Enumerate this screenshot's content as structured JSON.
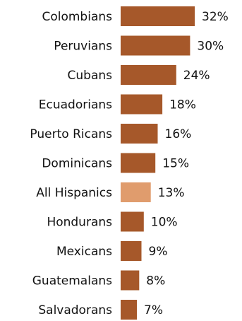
{
  "chart_data": {
    "type": "bar",
    "orientation": "horizontal",
    "title": "",
    "xlabel": "",
    "ylabel": "",
    "grid": false,
    "categories": [
      "Colombians",
      "Peruvians",
      "Cubans",
      "Ecuadorians",
      "Puerto Ricans",
      "Dominicans",
      "All Hispanics",
      "Hondurans",
      "Mexicans",
      "Guatemalans",
      "Salvadorans"
    ],
    "values": [
      32,
      30,
      24,
      18,
      16,
      15,
      13,
      10,
      9,
      8,
      7
    ],
    "value_labels": [
      "32%",
      "30%",
      "24%",
      "18%",
      "16%",
      "15%",
      "13%",
      "10%",
      "9%",
      "8%",
      "7%"
    ],
    "highlight_category": "All Hispanics",
    "xlim": [
      0,
      32
    ],
    "colors": {
      "bar": "#a6582a",
      "highlight": "#e09c6d"
    }
  }
}
